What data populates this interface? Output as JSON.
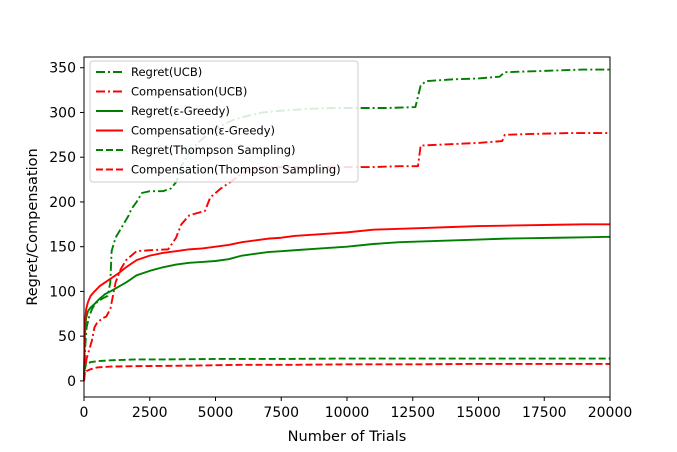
{
  "chart_data": {
    "type": "line",
    "title": "",
    "xlabel": "Number of Trials",
    "ylabel": "Regret/Compensation",
    "xlim": [
      0,
      20000
    ],
    "ylim": [
      -18,
      362
    ],
    "x_ticks": [
      0,
      2500,
      5000,
      7500,
      10000,
      12500,
      15000,
      17500,
      20000
    ],
    "x_tick_labels": [
      "0",
      "2500",
      "5000",
      "7500",
      "10000",
      "12500",
      "15000",
      "17500",
      "20000"
    ],
    "y_ticks": [
      0,
      50,
      100,
      150,
      200,
      250,
      300,
      350
    ],
    "y_tick_labels": [
      "0",
      "50",
      "100",
      "150",
      "200",
      "250",
      "300",
      "350"
    ],
    "grid": false,
    "legend_position": "top-left",
    "colors": {
      "green": "#008000",
      "red": "#ff0000"
    },
    "series": [
      {
        "name": "Regret(UCB)",
        "color": "#008000",
        "style": "dashdot",
        "points": [
          [
            0,
            0
          ],
          [
            50,
            40
          ],
          [
            100,
            60
          ],
          [
            200,
            72
          ],
          [
            300,
            80
          ],
          [
            400,
            85
          ],
          [
            500,
            88
          ],
          [
            700,
            92
          ],
          [
            900,
            95
          ],
          [
            1000,
            110
          ],
          [
            1050,
            145
          ],
          [
            1200,
            160
          ],
          [
            1500,
            175
          ],
          [
            1700,
            185
          ],
          [
            1800,
            192
          ],
          [
            2000,
            200
          ],
          [
            2200,
            210
          ],
          [
            2500,
            212
          ],
          [
            3000,
            212
          ],
          [
            3300,
            215
          ],
          [
            3500,
            222
          ],
          [
            3700,
            240
          ],
          [
            4000,
            255
          ],
          [
            4400,
            268
          ],
          [
            4800,
            278
          ],
          [
            5200,
            285
          ],
          [
            5700,
            292
          ],
          [
            6200,
            296
          ],
          [
            6800,
            300
          ],
          [
            7500,
            302
          ],
          [
            8500,
            304
          ],
          [
            9500,
            305
          ],
          [
            10500,
            305
          ],
          [
            11500,
            305
          ],
          [
            12600,
            306
          ],
          [
            12800,
            330
          ],
          [
            13000,
            335
          ],
          [
            14000,
            337
          ],
          [
            15000,
            338
          ],
          [
            15800,
            340
          ],
          [
            16000,
            345
          ],
          [
            17000,
            346
          ],
          [
            18000,
            347
          ],
          [
            19000,
            348
          ],
          [
            20000,
            348
          ]
        ]
      },
      {
        "name": "Compensation(UCB)",
        "color": "#ff0000",
        "style": "dashdot",
        "points": [
          [
            0,
            0
          ],
          [
            50,
            15
          ],
          [
            100,
            25
          ],
          [
            200,
            35
          ],
          [
            300,
            45
          ],
          [
            400,
            60
          ],
          [
            500,
            65
          ],
          [
            700,
            70
          ],
          [
            850,
            72
          ],
          [
            900,
            75
          ],
          [
            1000,
            80
          ],
          [
            1100,
            95
          ],
          [
            1200,
            110
          ],
          [
            1400,
            125
          ],
          [
            1600,
            135
          ],
          [
            1800,
            140
          ],
          [
            2000,
            145
          ],
          [
            2500,
            146
          ],
          [
            3200,
            147
          ],
          [
            3500,
            160
          ],
          [
            3700,
            175
          ],
          [
            4000,
            185
          ],
          [
            4600,
            190
          ],
          [
            4800,
            205
          ],
          [
            5200,
            215
          ],
          [
            5700,
            225
          ],
          [
            6000,
            232
          ],
          [
            6200,
            235
          ],
          [
            6500,
            238
          ],
          [
            7000,
            239
          ],
          [
            8000,
            239
          ],
          [
            9000,
            239
          ],
          [
            10000,
            239
          ],
          [
            11000,
            239
          ],
          [
            12000,
            240
          ],
          [
            12700,
            240
          ],
          [
            12800,
            263
          ],
          [
            13500,
            264
          ],
          [
            15000,
            266
          ],
          [
            15900,
            268
          ],
          [
            16000,
            275
          ],
          [
            17000,
            276
          ],
          [
            18500,
            277
          ],
          [
            20000,
            277
          ]
        ]
      },
      {
        "name": "Regret(ε-Greedy)",
        "color": "#008000",
        "style": "solid",
        "points": [
          [
            0,
            0
          ],
          [
            30,
            50
          ],
          [
            80,
            70
          ],
          [
            150,
            78
          ],
          [
            250,
            82
          ],
          [
            400,
            86
          ],
          [
            600,
            92
          ],
          [
            800,
            97
          ],
          [
            1000,
            100
          ],
          [
            1300,
            105
          ],
          [
            1600,
            110
          ],
          [
            2000,
            118
          ],
          [
            2500,
            123
          ],
          [
            3000,
            127
          ],
          [
            3500,
            130
          ],
          [
            4000,
            132
          ],
          [
            4500,
            133
          ],
          [
            5000,
            134
          ],
          [
            5500,
            136
          ],
          [
            6000,
            140
          ],
          [
            6500,
            142
          ],
          [
            7000,
            144
          ],
          [
            7500,
            145
          ],
          [
            8000,
            146
          ],
          [
            9000,
            148
          ],
          [
            10000,
            150
          ],
          [
            11000,
            153
          ],
          [
            12000,
            155
          ],
          [
            13000,
            156
          ],
          [
            14000,
            157
          ],
          [
            15000,
            158
          ],
          [
            16000,
            159
          ],
          [
            17000,
            159.5
          ],
          [
            18000,
            160
          ],
          [
            19000,
            160.5
          ],
          [
            20000,
            161
          ]
        ]
      },
      {
        "name": "Compensation(ε-Greedy)",
        "color": "#ff0000",
        "style": "solid",
        "points": [
          [
            0,
            0
          ],
          [
            30,
            60
          ],
          [
            80,
            80
          ],
          [
            150,
            88
          ],
          [
            250,
            95
          ],
          [
            400,
            100
          ],
          [
            600,
            106
          ],
          [
            800,
            110
          ],
          [
            1000,
            114
          ],
          [
            1300,
            120
          ],
          [
            1600,
            127
          ],
          [
            2000,
            135
          ],
          [
            2500,
            140
          ],
          [
            3000,
            143
          ],
          [
            3500,
            145
          ],
          [
            4000,
            147
          ],
          [
            4500,
            148
          ],
          [
            5000,
            150
          ],
          [
            5500,
            152
          ],
          [
            6000,
            155
          ],
          [
            6500,
            157
          ],
          [
            7000,
            159
          ],
          [
            7500,
            160
          ],
          [
            8000,
            162
          ],
          [
            9000,
            164
          ],
          [
            10000,
            166
          ],
          [
            11000,
            169
          ],
          [
            12000,
            170
          ],
          [
            13000,
            171
          ],
          [
            14000,
            172
          ],
          [
            15000,
            173
          ],
          [
            16000,
            173.5
          ],
          [
            17000,
            174
          ],
          [
            18000,
            174.5
          ],
          [
            19000,
            175
          ],
          [
            20000,
            175
          ]
        ]
      },
      {
        "name": "Regret(Thompson Sampling)",
        "color": "#008000",
        "style": "dashed",
        "points": [
          [
            0,
            0
          ],
          [
            30,
            15
          ],
          [
            100,
            19
          ],
          [
            250,
            21
          ],
          [
            500,
            22
          ],
          [
            1000,
            23
          ],
          [
            2000,
            24
          ],
          [
            3000,
            24
          ],
          [
            5000,
            24.5
          ],
          [
            7500,
            24.5
          ],
          [
            10000,
            25
          ],
          [
            12500,
            25
          ],
          [
            15000,
            25
          ],
          [
            17500,
            25
          ],
          [
            20000,
            25
          ]
        ]
      },
      {
        "name": "Compensation(Thompson Sampling)",
        "color": "#ff0000",
        "style": "dashed",
        "points": [
          [
            0,
            0
          ],
          [
            30,
            8
          ],
          [
            100,
            11
          ],
          [
            250,
            13
          ],
          [
            500,
            15
          ],
          [
            1000,
            16
          ],
          [
            2000,
            16.5
          ],
          [
            4000,
            17
          ],
          [
            6000,
            18
          ],
          [
            8000,
            18
          ],
          [
            10000,
            18.5
          ],
          [
            12500,
            18.5
          ],
          [
            15000,
            19
          ],
          [
            17500,
            19
          ],
          [
            20000,
            19
          ]
        ]
      }
    ]
  }
}
